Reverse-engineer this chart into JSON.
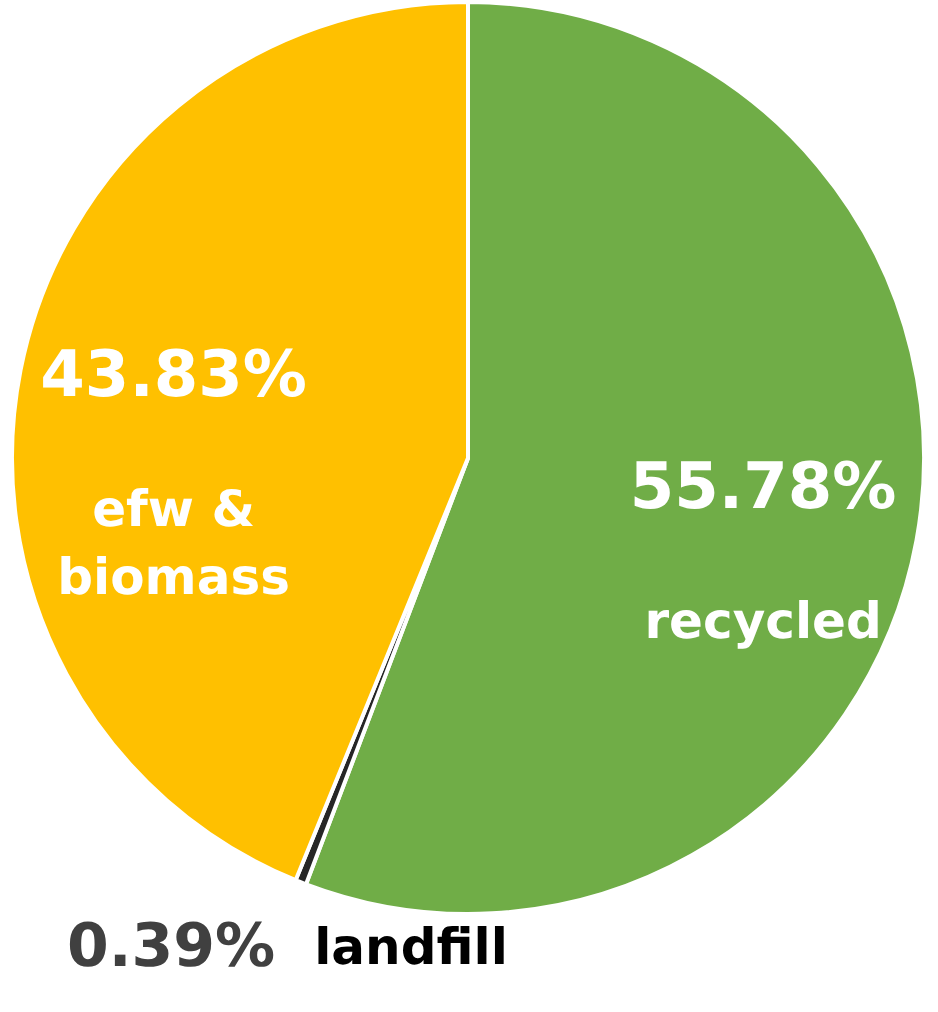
{
  "chart_data": {
    "type": "pie",
    "categories": [
      "recycled",
      "landfill",
      "efw & biomass"
    ],
    "values": [
      55.78,
      0.39,
      43.83
    ],
    "value_labels": [
      "55.78%",
      "0.39%",
      "43.83%"
    ],
    "colors": [
      "#70ad47",
      "#262626",
      "#ffc000"
    ]
  }
}
